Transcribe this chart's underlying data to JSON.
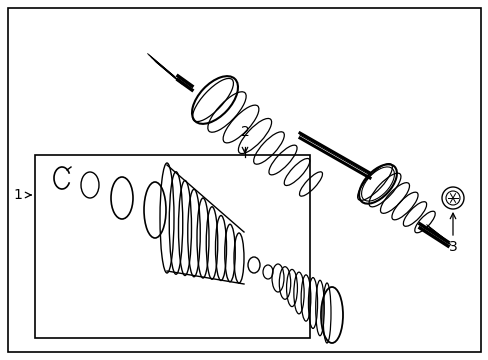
{
  "bg_color": "#ffffff",
  "line_color": "#000000",
  "label_1": "1",
  "label_2": "2",
  "label_3": "3",
  "figsize": [
    4.89,
    3.6
  ],
  "dpi": 100,
  "xlim": [
    0,
    489
  ],
  "ylim": [
    0,
    360
  ]
}
